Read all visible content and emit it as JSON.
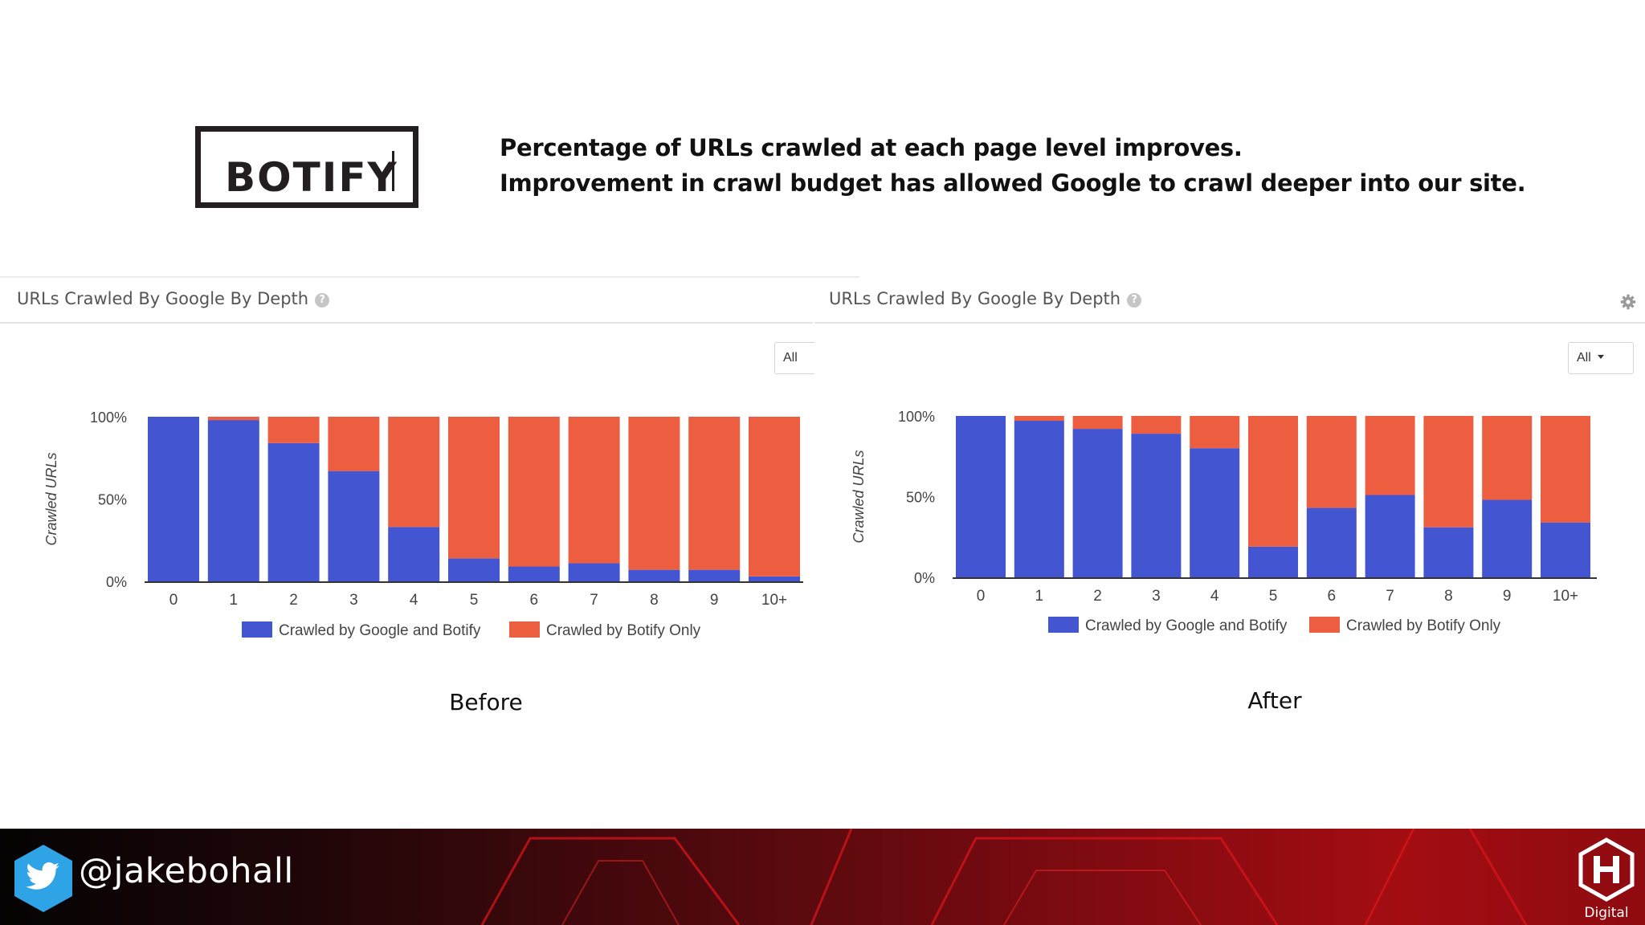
{
  "logo": {
    "text": "BOTIFY"
  },
  "headline": {
    "line1": "Percentage of URLs crawled at each page level improves.",
    "line2": "Improvement in crawl budget has allowed Google to crawl deeper into our site."
  },
  "panels": {
    "before": {
      "title": "URLs Crawled By Google By Depth",
      "filter": "All",
      "caption": "Before"
    },
    "after": {
      "title": "URLs Crawled By Google By Depth",
      "filter": "All",
      "caption": "After"
    }
  },
  "footer": {
    "handle": "@jakebohall",
    "brand": "Digital"
  },
  "colors": {
    "google_and_botify": "#4355d0",
    "botify_only": "#ec5e3f"
  },
  "chart_data": [
    {
      "type": "bar",
      "stacked": true,
      "ylabel": "Crawled URLs",
      "yticks": [
        "0%",
        "50%",
        "100%"
      ],
      "ylim": [
        0,
        100
      ],
      "categories": [
        "0",
        "1",
        "2",
        "3",
        "4",
        "5",
        "6",
        "7",
        "8",
        "9",
        "10+"
      ],
      "series": [
        {
          "name": "Crawled by Google and Botify",
          "values": [
            100,
            98,
            84,
            67,
            33,
            14,
            9,
            11,
            7,
            7,
            3
          ]
        },
        {
          "name": "Crawled by Botify Only",
          "values": [
            0,
            2,
            16,
            33,
            67,
            86,
            91,
            89,
            93,
            93,
            97
          ]
        }
      ],
      "legend": "bottom",
      "grid": false
    },
    {
      "type": "bar",
      "stacked": true,
      "ylabel": "Crawled URLs",
      "yticks": [
        "0%",
        "50%",
        "100%"
      ],
      "ylim": [
        0,
        100
      ],
      "categories": [
        "0",
        "1",
        "2",
        "3",
        "4",
        "5",
        "6",
        "7",
        "8",
        "9",
        "10+"
      ],
      "series": [
        {
          "name": "Crawled by Google and Botify",
          "values": [
            100,
            97,
            92,
            89,
            80,
            19,
            43,
            51,
            31,
            48,
            34
          ]
        },
        {
          "name": "Crawled by Botify Only",
          "values": [
            0,
            3,
            8,
            11,
            20,
            81,
            57,
            49,
            69,
            52,
            66
          ]
        }
      ],
      "legend": "bottom",
      "grid": false
    }
  ]
}
